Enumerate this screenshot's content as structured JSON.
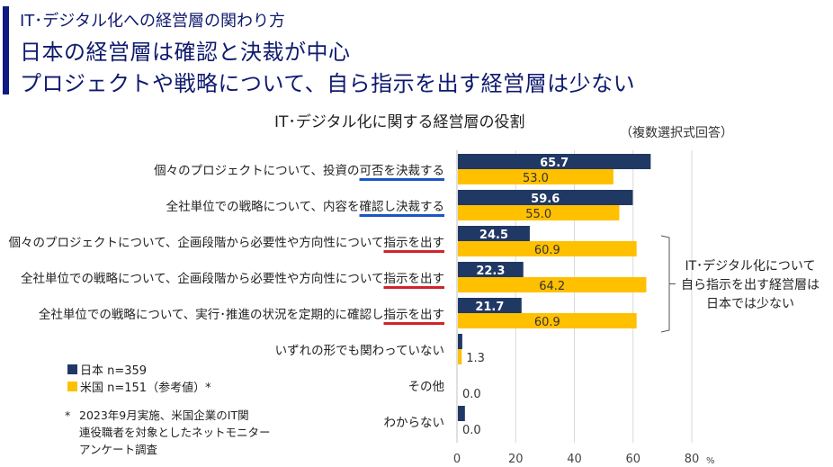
{
  "header": {
    "sup_title": "IT･デジタル化への経営層の関わり方",
    "title_line1": "日本の経営層は確認と決裁が中心",
    "title_line2": "プロジェクトや戦略について、自ら指示を出す経営層は少ない"
  },
  "colors": {
    "accent": "#0f1a82",
    "japan": "#203864",
    "usa": "#FFC000",
    "underline_blue": "#1c55c4",
    "underline_red": "#d0242b"
  },
  "chart_data": {
    "type": "bar",
    "orientation": "horizontal",
    "title": "IT･デジタル化に関する経営層の役割",
    "note": "（複数選択式回答）",
    "categories": [
      {
        "prefix": "個々のプロジェクトについて、投資の",
        "emph": "可否を決裁する",
        "emph_color": "blue"
      },
      {
        "prefix": "全社単位での戦略について、内容を",
        "emph": "確認し決裁する",
        "emph_color": "blue"
      },
      {
        "prefix": "個々のプロジェクトについて、企画段階から必要性や方向性について",
        "emph": "指示を出す",
        "emph_color": "red"
      },
      {
        "prefix": "全社単位での戦略について、企画段階から必要性や方向性について",
        "emph": "指示を出す",
        "emph_color": "red"
      },
      {
        "prefix": "全社単位での戦略について、実行･推進の状況を定期的に確認し",
        "emph": "指示を出す",
        "emph_color": "red"
      },
      {
        "prefix": "いずれの形でも関わっていない",
        "emph": "",
        "emph_color": ""
      },
      {
        "prefix": "その他",
        "emph": "",
        "emph_color": ""
      },
      {
        "prefix": "わからない",
        "emph": "",
        "emph_color": ""
      }
    ],
    "series": [
      {
        "name": "日本 n=359",
        "values": [
          65.7,
          59.6,
          24.5,
          22.3,
          21.7,
          1.5,
          0,
          2.4
        ],
        "labels": [
          "65.7",
          "59.6",
          "24.5",
          "22.3",
          "21.7",
          "",
          "",
          ""
        ]
      },
      {
        "name": "米国 n=151（参考値）*",
        "values": [
          53.0,
          55.0,
          60.9,
          64.2,
          60.9,
          1.3,
          0.0,
          0.0
        ],
        "labels": [
          "53.0",
          "55.0",
          "60.9",
          "64.2",
          "60.9",
          "1.3",
          "0.0",
          "0.0"
        ]
      }
    ],
    "xlim": [
      0,
      80
    ],
    "xticks": [
      "0",
      "20",
      "40",
      "60",
      "80"
    ],
    "xunit": "%",
    "grid": true,
    "legend_position": "bottom-left"
  },
  "callout": {
    "lines": [
      "IT･デジタル化について",
      "自ら指示を出す経営層は",
      "日本では少ない"
    ]
  },
  "footnote": {
    "star": "*",
    "lines": [
      "2023年9月実施、米国企業のIT関",
      "連役職者を対象としたネットモニター",
      "アンケート調査"
    ]
  }
}
